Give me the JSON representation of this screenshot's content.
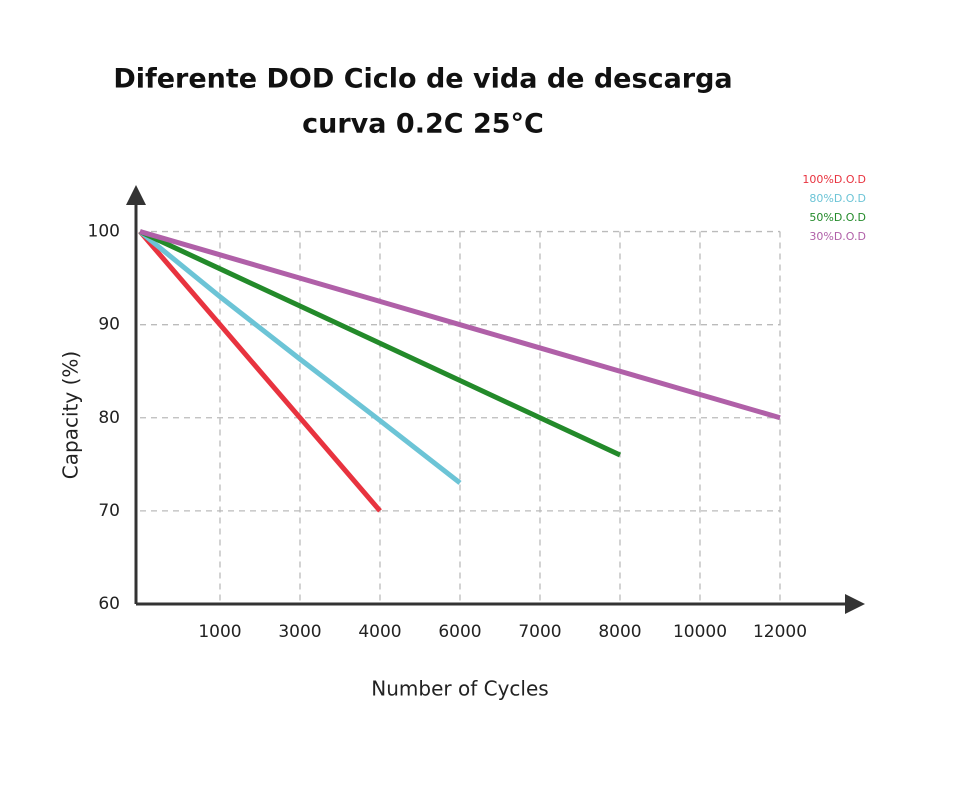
{
  "chart_data": {
    "type": "line",
    "title": [
      "Diferente DOD Ciclo de vida de descarga",
      "curva 0.2C 25°C"
    ],
    "x_label": "Number of Cycles",
    "y_label": "Capacity (%)",
    "categories": [
      null,
      "1000",
      "3000",
      "4000",
      "6000",
      "7000",
      "8000",
      "10000",
      "12000"
    ],
    "series": [
      {
        "name": "100%D.O.D",
        "color": "#e8333f",
        "values": [
          100,
          90,
          80,
          70,
          null,
          null,
          null,
          null,
          null
        ]
      },
      {
        "name": "80%D.O.D",
        "color": "#6cc4d6",
        "values": [
          100,
          93,
          86.3,
          79.7,
          73,
          null,
          null,
          null,
          null
        ]
      },
      {
        "name": "50%D.O.D",
        "color": "#238a2a",
        "values": [
          100,
          96,
          92,
          88,
          84,
          80,
          76,
          null,
          null
        ]
      },
      {
        "name": "30%D.O.D",
        "color": "#b060a8",
        "values": [
          100,
          97.5,
          95,
          92.5,
          90,
          87.5,
          85,
          82.5,
          80
        ]
      }
    ],
    "ylim": [
      60,
      105
    ],
    "yticks": [
      60,
      70,
      80,
      90,
      100
    ],
    "grid": true,
    "legend": "top-right"
  }
}
